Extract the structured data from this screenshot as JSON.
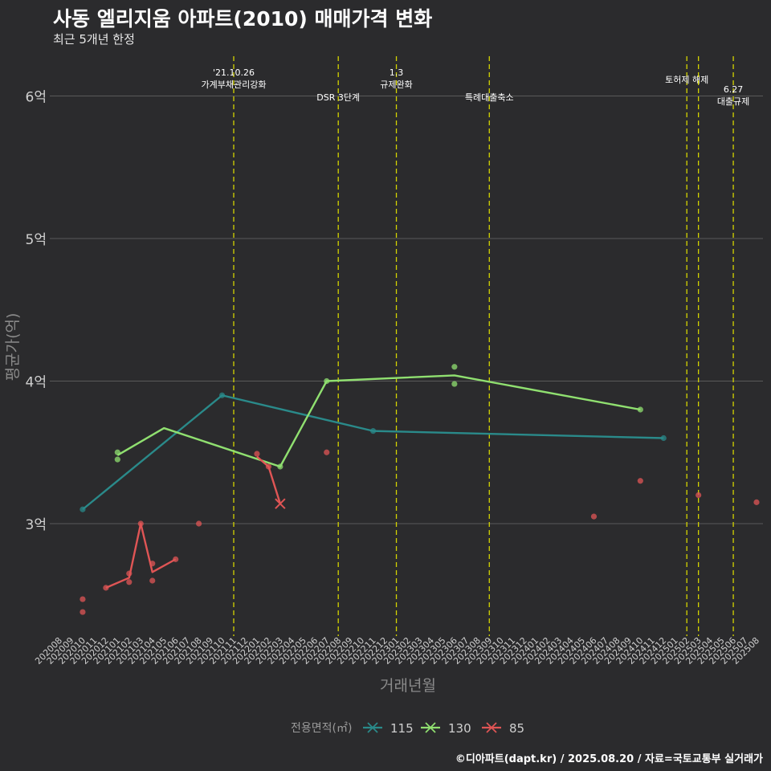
{
  "title": "사동 엘리지움 아파트(2010) 매매가격 변화",
  "subtitle": "최근 5개년 한정",
  "caption": "©디아파트(dapt.kr) / 2025.08.20 / 자료=국토교통부 실거래가",
  "colors": {
    "background": "#2b2b2d",
    "grid": "#5a5a5a",
    "policy_line": "#d4d400",
    "axis_text": "#cccccc",
    "series_115": "#2a8a8a",
    "series_130": "#90e070",
    "series_85": "#e05555"
  },
  "chart_data": {
    "type": "line",
    "xlabel": "거래년월",
    "ylabel": "평균가(억)",
    "ylim": [
      2.2,
      6.3
    ],
    "yticks": [
      3,
      4,
      5,
      6
    ],
    "ytick_labels": [
      "3억",
      "4억",
      "5억",
      "6억"
    ],
    "categories": [
      "202008",
      "202009",
      "202010",
      "202011",
      "202012",
      "202101",
      "202102",
      "202103",
      "202104",
      "202105",
      "202106",
      "202107",
      "202108",
      "202109",
      "202110",
      "202111",
      "202112",
      "202201",
      "202202",
      "202203",
      "202204",
      "202205",
      "202206",
      "202207",
      "202208",
      "202209",
      "202210",
      "202211",
      "202212",
      "202301",
      "202302",
      "202303",
      "202304",
      "202305",
      "202306",
      "202307",
      "202308",
      "202309",
      "202310",
      "202311",
      "202312",
      "202401",
      "202402",
      "202403",
      "202404",
      "202405",
      "202406",
      "202407",
      "202408",
      "202409",
      "202410",
      "202411",
      "202412",
      "202501",
      "202502",
      "202503",
      "202504",
      "202505",
      "202506",
      "202507",
      "202508"
    ],
    "legend_title": "전용면적(㎡)",
    "series": [
      {
        "name": "115",
        "color": "#2a8a8a",
        "line": [
          [
            "202010",
            3.1
          ],
          [
            "202110",
            3.9
          ],
          [
            "202211",
            3.65
          ],
          [
            "202412",
            3.6
          ]
        ],
        "points": [
          [
            "202010",
            3.1
          ],
          [
            "202110",
            3.9
          ],
          [
            "202211",
            3.65
          ],
          [
            "202412",
            3.6
          ]
        ]
      },
      {
        "name": "130",
        "color": "#90e070",
        "line": [
          [
            "202101",
            3.48
          ],
          [
            "202105",
            3.67
          ],
          [
            "202203",
            3.4
          ],
          [
            "202207",
            4.0
          ],
          [
            "202306",
            4.04
          ],
          [
            "202410",
            3.8
          ]
        ],
        "points": [
          [
            "202101",
            3.5
          ],
          [
            "202101",
            3.45
          ],
          [
            "202203",
            3.4
          ],
          [
            "202207",
            4.0
          ],
          [
            "202306",
            4.1
          ],
          [
            "202306",
            3.98
          ],
          [
            "202410",
            3.8
          ]
        ]
      },
      {
        "name": "85",
        "color": "#e05555",
        "line": [
          [
            "202012",
            2.55
          ],
          [
            "202102",
            2.62
          ],
          [
            "202103",
            3.0
          ],
          [
            "202104",
            2.66
          ],
          [
            "202106",
            2.75
          ]
        ],
        "points": [
          [
            "202010",
            2.47
          ],
          [
            "202010",
            2.38
          ],
          [
            "202012",
            2.55
          ],
          [
            "202102",
            2.65
          ],
          [
            "202102",
            2.59
          ],
          [
            "202103",
            3.0
          ],
          [
            "202104",
            2.72
          ],
          [
            "202104",
            2.6
          ],
          [
            "202106",
            2.75
          ],
          [
            "202108",
            3.0
          ],
          [
            "202201",
            3.49
          ],
          [
            "202202",
            3.4
          ],
          [
            "202207",
            3.5
          ],
          [
            "202406",
            3.05
          ],
          [
            "202410",
            3.3
          ],
          [
            "202503",
            3.2
          ],
          [
            "202508",
            3.15
          ]
        ],
        "line2": [
          [
            "202201",
            3.47
          ],
          [
            "202202",
            3.4
          ],
          [
            "202203",
            3.14
          ]
        ],
        "x_marker": [
          "202203",
          3.14
        ]
      }
    ],
    "policy_lines": [
      {
        "x": "202111",
        "label_lines": [
          "'21.10.26",
          "가계부채관리강화"
        ],
        "level": "top"
      },
      {
        "x": "202208",
        "label_lines": [
          "DSR 3단계"
        ],
        "level": "mid"
      },
      {
        "x": "202301",
        "label_lines": [
          "1.3",
          "규제완화"
        ],
        "level": "top"
      },
      {
        "x": "202309",
        "label_lines": [
          "특례대출축소"
        ],
        "level": "mid"
      },
      {
        "x": "202502",
        "label_lines": [
          "토허제 해제"
        ],
        "level": "top2"
      },
      {
        "x": "202503",
        "label_lines": [],
        "level": "none"
      },
      {
        "x": "202506",
        "label_lines": [
          "6.27",
          "대출규제"
        ],
        "level": "low"
      }
    ]
  }
}
